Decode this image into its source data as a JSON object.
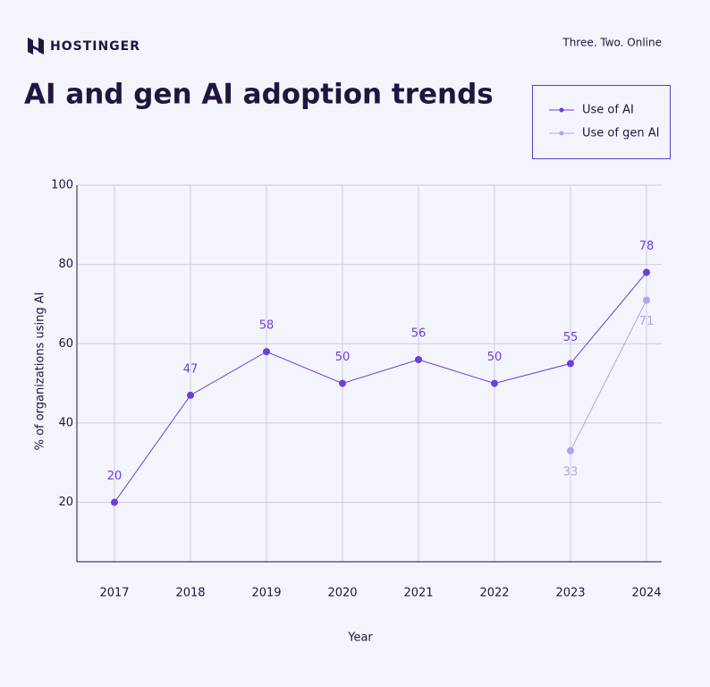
{
  "brand": "HOSTINGER",
  "tagline": "Three. Two. Online",
  "chart_data": {
    "type": "line",
    "title": "AI and gen AI adoption trends",
    "x_label": "Year",
    "y_label": "% of organizations using AI",
    "categories": [
      "2017",
      "2018",
      "2019",
      "2020",
      "2021",
      "2022",
      "2023",
      "2024"
    ],
    "series": [
      {
        "name": "Use of AI",
        "color": "#6a3fdc",
        "values": [
          20,
          47,
          58,
          50,
          56,
          50,
          55,
          78
        ]
      },
      {
        "name": "Use of gen AI",
        "color": "#b3a3ee",
        "values": [
          null,
          null,
          null,
          null,
          null,
          null,
          33,
          71
        ]
      }
    ],
    "ylim": [
      5,
      100
    ],
    "yticks": [
      20,
      40,
      60,
      80,
      100
    ],
    "grid": true,
    "legend": "top-right"
  }
}
